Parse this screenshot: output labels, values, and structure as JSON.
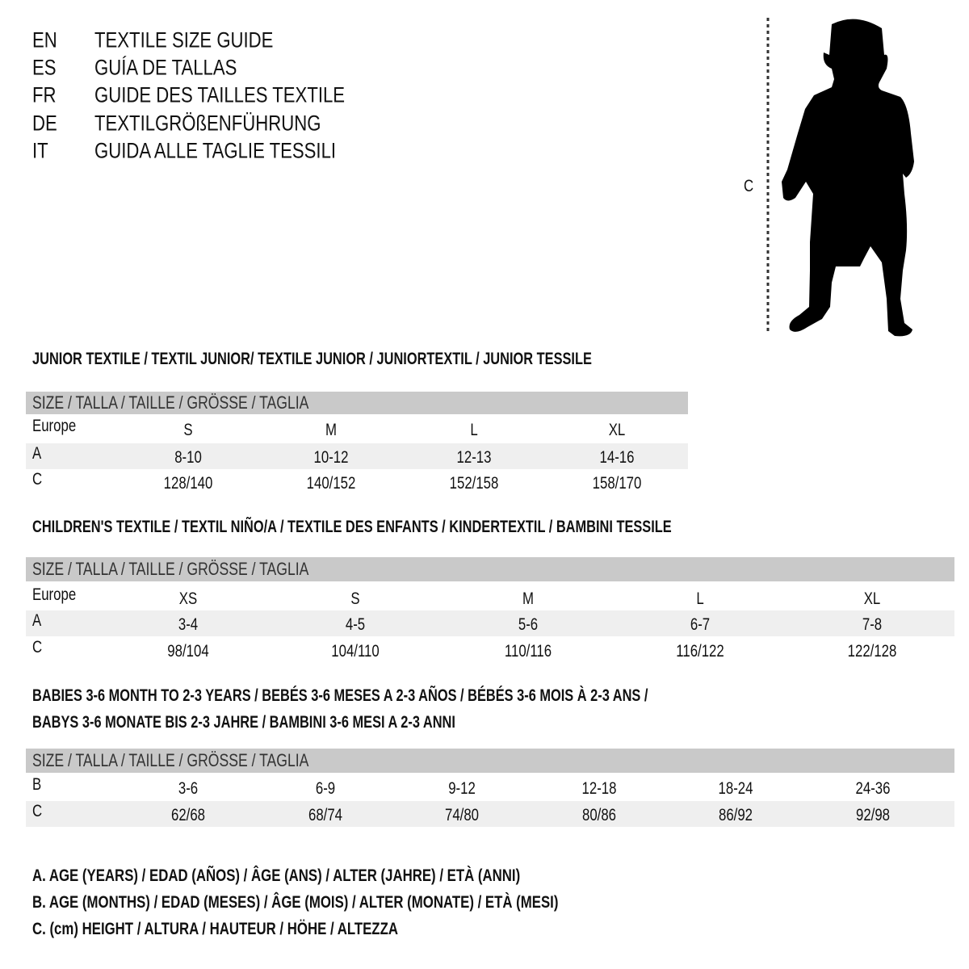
{
  "guide_titles": [
    {
      "code": "EN",
      "title": "TEXTILE SIZE GUIDE"
    },
    {
      "code": "ES",
      "title": "GUÍA DE TALLAS"
    },
    {
      "code": "FR",
      "title": "GUIDE DES TAILLES TEXTILE"
    },
    {
      "code": "DE",
      "title": "TEXTILGRÖßENFÜHRUNG"
    },
    {
      "code": "IT",
      "title": "GUIDA ALLE TAGLIE TESSILI"
    }
  ],
  "figure": {
    "measure_label": "C",
    "icon": "child-silhouette-icon"
  },
  "colors": {
    "header_band": "#c9c9c9",
    "alt_row": "#efefef",
    "text": "#111111"
  },
  "size_header": "SIZE / TALLA / TAILLE / GRÖSSE / TAGLIA",
  "junior": {
    "heading": "JUNIOR TEXTILE / TEXTIL JUNIOR/ TEXTILE JUNIOR / JUNIORTEXTIL / JUNIOR TESSILE",
    "rows": [
      {
        "label": "Europe",
        "values": [
          "S",
          "M",
          "L",
          "XL"
        ]
      },
      {
        "label": "A",
        "values": [
          "8-10",
          "10-12",
          "12-13",
          "14-16"
        ]
      },
      {
        "label": "C",
        "values": [
          "128/140",
          "140/152",
          "152/158",
          "158/170"
        ]
      }
    ]
  },
  "children": {
    "heading": "CHILDREN'S TEXTILE / TEXTIL NIÑO/A / TEXTILE DES ENFANTS / KINDERTEXTIL / BAMBINI TESSILE",
    "rows": [
      {
        "label": "Europe",
        "values": [
          "XS",
          "S",
          "M",
          "L",
          "XL"
        ]
      },
      {
        "label": "A",
        "values": [
          "3-4",
          "4-5",
          "5-6",
          "6-7",
          "7-8"
        ]
      },
      {
        "label": "C",
        "values": [
          "98/104",
          "104/110",
          "110/116",
          "116/122",
          "122/128"
        ]
      }
    ]
  },
  "babies": {
    "heading_lines": [
      "BABIES 3-6 MONTH TO 2-3 YEARS / BEBÉS 3-6 MESES A 2-3 AÑOS / BÉBÉS 3-6 MOIS À 2-3 ANS /",
      "BABYS 3-6 MONATE BIS 2-3 JAHRE / BAMBINI 3-6 MESI A 2-3 ANNI"
    ],
    "rows": [
      {
        "label": "B",
        "values": [
          "3-6",
          "6-9",
          "9-12",
          "12-18",
          "18-24",
          "24-36"
        ]
      },
      {
        "label": "C",
        "values": [
          "62/68",
          "68/74",
          "74/80",
          "80/86",
          "86/92",
          "92/98"
        ]
      }
    ]
  },
  "legend": [
    "A. AGE (YEARS) / EDAD (AÑOS) / ÂGE (ANS) / ALTER (JAHRE) / ETÀ (ANNI)",
    "B. AGE (MONTHS) / EDAD (MESES) / ÂGE (MOIS) / ALTER (MONATE) / ETÀ (MESI)",
    "C. (cm) HEIGHT / ALTURA / HAUTEUR / HÖHE / ALTEZZA"
  ]
}
